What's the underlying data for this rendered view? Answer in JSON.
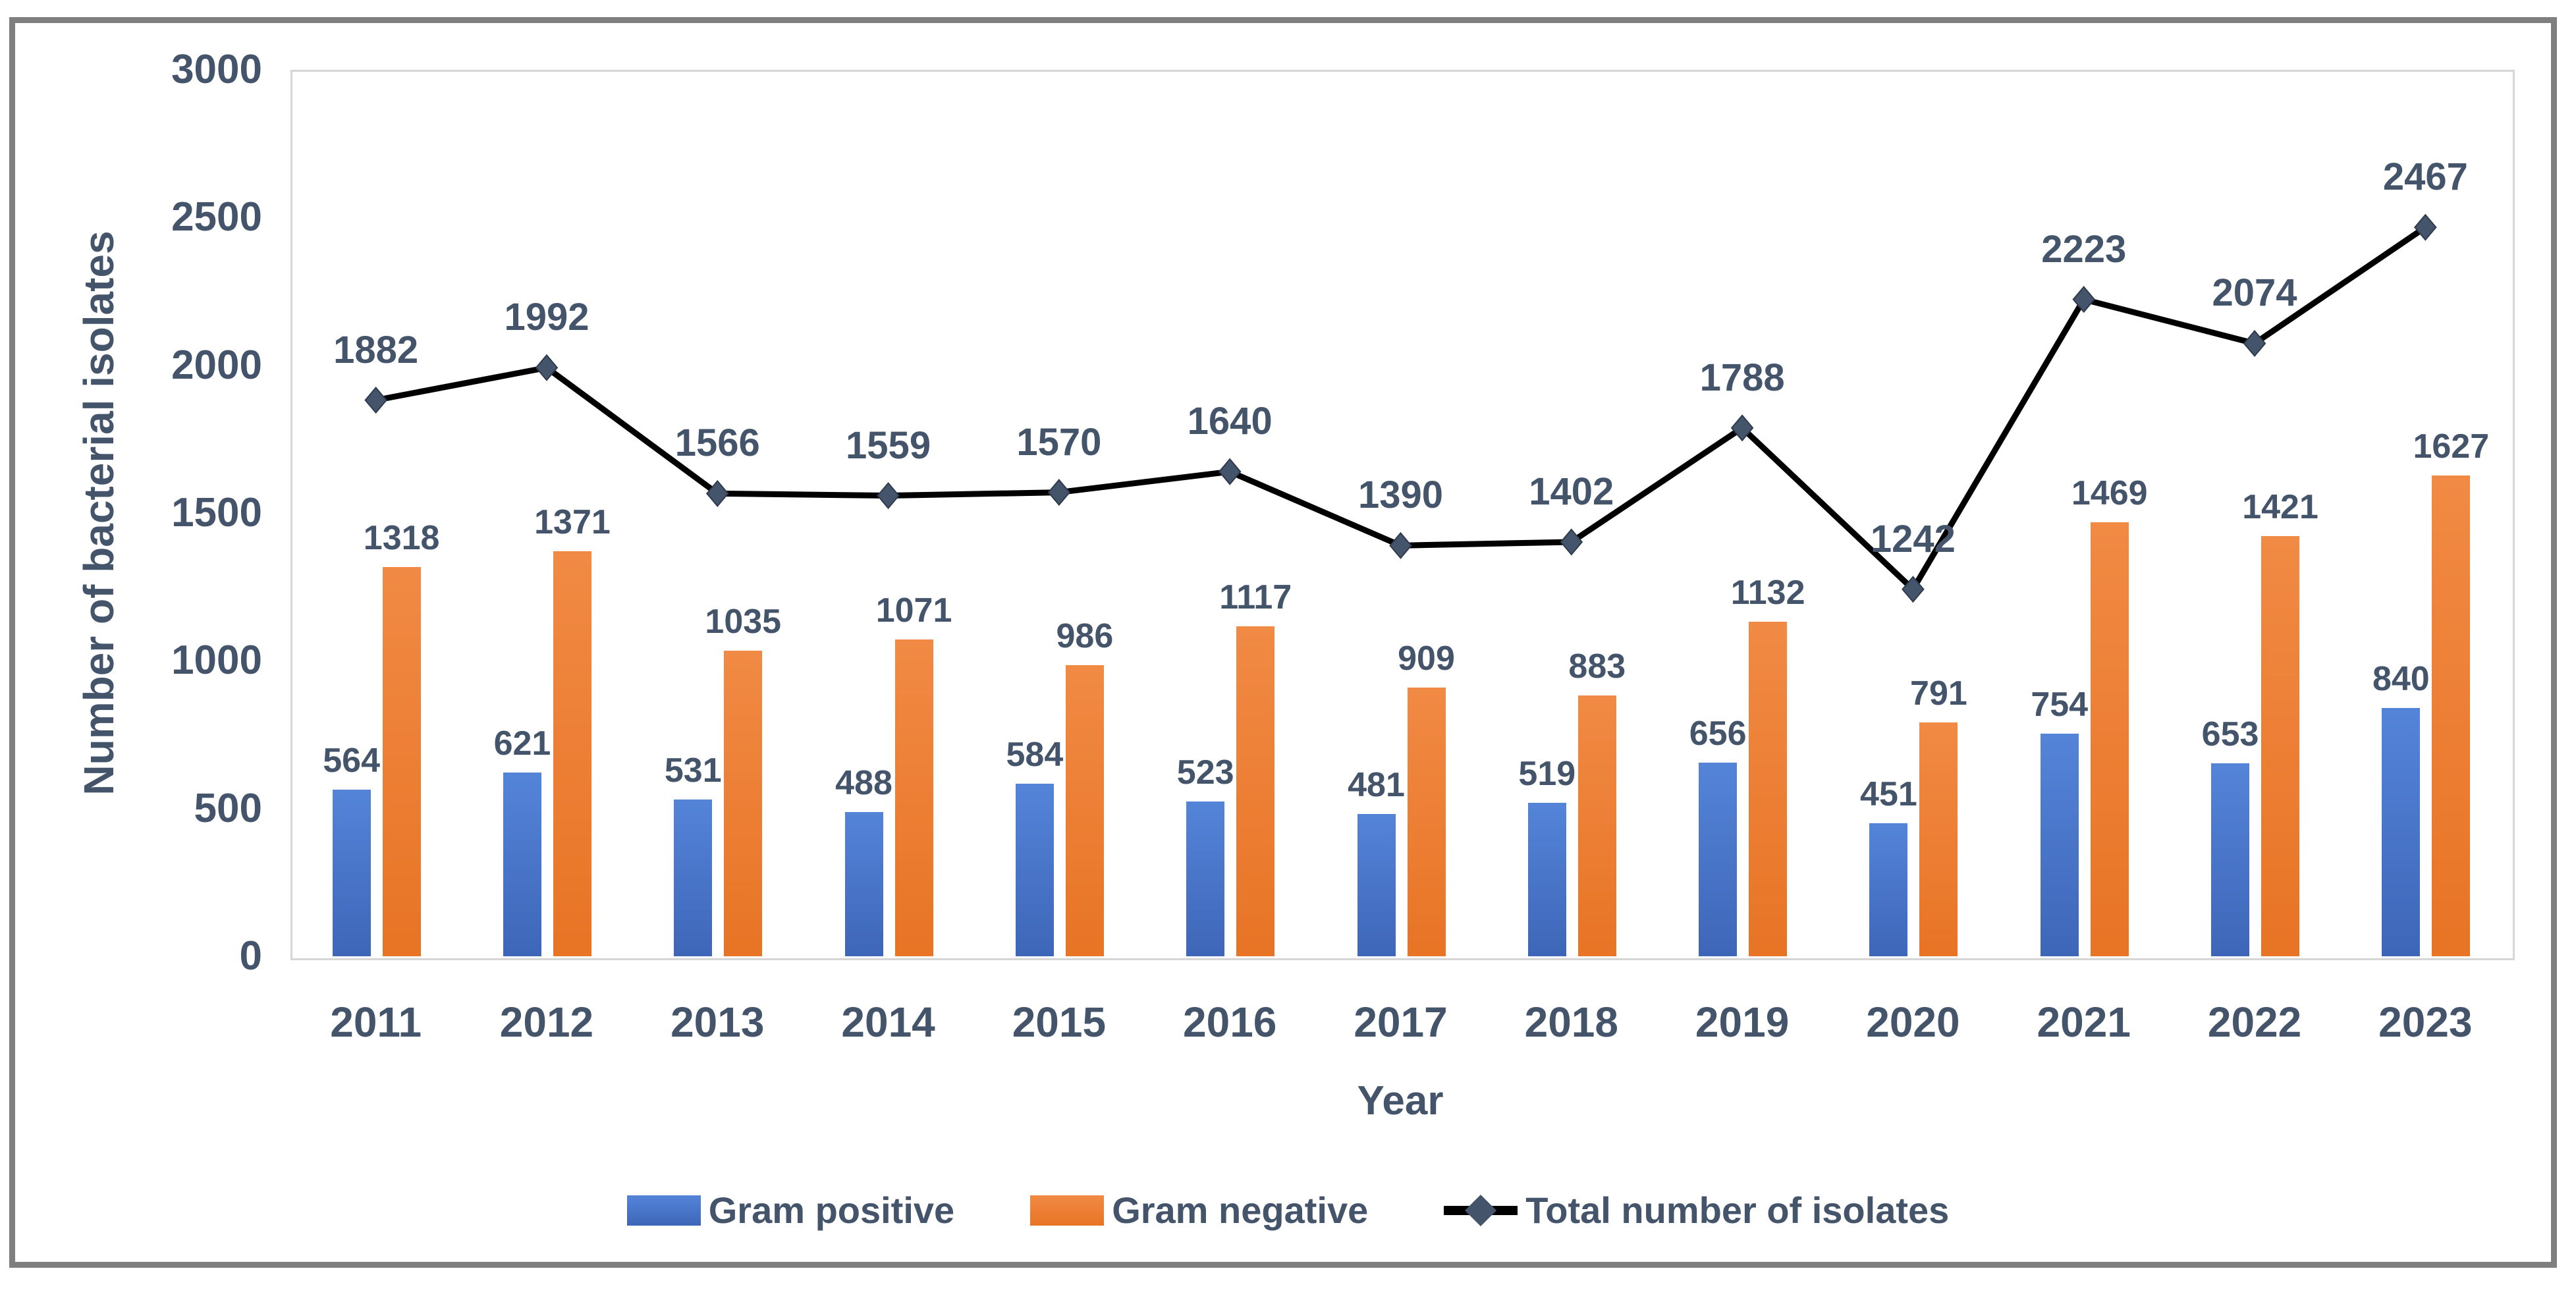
{
  "chart_data": {
    "type": "combo-bar-line",
    "title": "",
    "xlabel": "Year",
    "ylabel": "Number of bacterial isolates",
    "ylim": [
      0,
      3000
    ],
    "yticks": [
      0,
      500,
      1000,
      1500,
      2000,
      2500,
      3000
    ],
    "grid": false,
    "legend_position": "bottom",
    "categories": [
      "2011",
      "2012",
      "2013",
      "2014",
      "2015",
      "2016",
      "2017",
      "2018",
      "2019",
      "2020",
      "2021",
      "2022",
      "2023"
    ],
    "series": [
      {
        "name": "Gram positive",
        "type": "bar",
        "color": "#4472C4",
        "color_light": "#5484D8",
        "color_dark": "#3E66B8",
        "values": [
          564,
          621,
          531,
          488,
          584,
          523,
          481,
          519,
          656,
          451,
          754,
          653,
          840
        ]
      },
      {
        "name": "Gram negative",
        "type": "bar",
        "color": "#ED7D31",
        "color_light": "#F18A44",
        "color_dark": "#E87425",
        "values": [
          1318,
          1371,
          1035,
          1071,
          986,
          1117,
          909,
          883,
          1132,
          791,
          1469,
          1421,
          1627
        ]
      },
      {
        "name": "Total number of isolates",
        "type": "line",
        "color": "#000000",
        "marker_color": "#44546A",
        "values": [
          1882,
          1992,
          1566,
          1559,
          1570,
          1640,
          1390,
          1402,
          1788,
          1242,
          2223,
          2074,
          2467
        ]
      }
    ],
    "text_color": "#44546A",
    "frame_color": "#7F7F7F",
    "plot_border_color": "#D6D6D6"
  }
}
